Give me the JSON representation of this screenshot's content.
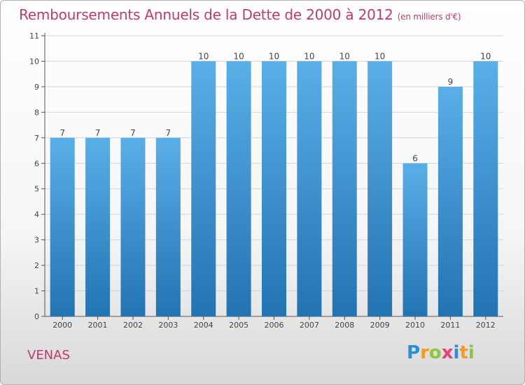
{
  "title": "Remboursements Annuels de la Dette de 2000 à 2012",
  "unit": "(en milliers d'€)",
  "commune": "VENAS",
  "logo": {
    "text": "Proxiti",
    "letters": [
      {
        "ch": "P",
        "color": "#2b8fd6"
      },
      {
        "ch": "r",
        "color": "#f39c1f"
      },
      {
        "ch": "o",
        "color": "#8cc63f"
      },
      {
        "ch": "x",
        "color": "#e5407a"
      },
      {
        "ch": "i",
        "color": "#2b8fd6"
      },
      {
        "ch": "t",
        "color": "#f39c1f"
      },
      {
        "ch": "i",
        "color": "#8cc63f"
      }
    ]
  },
  "colors": {
    "title": "#c03a6b",
    "bar_top": "#5aafe8",
    "bar_bottom": "#2273b2",
    "grid": "#d4d4d4",
    "label": "#444444"
  },
  "chart_data": {
    "type": "bar",
    "title": "Remboursements Annuels de la Dette de 2000 à 2012",
    "xlabel": "",
    "ylabel": "",
    "categories": [
      "2000",
      "2001",
      "2002",
      "2003",
      "2004",
      "2005",
      "2006",
      "2007",
      "2008",
      "2009",
      "2010",
      "2011",
      "2012"
    ],
    "values": [
      7,
      7,
      7,
      7,
      10,
      10,
      10,
      10,
      10,
      10,
      6,
      9,
      10
    ],
    "data_labels": [
      "7",
      "7",
      "7",
      "7",
      "10",
      "10",
      "10",
      "10",
      "10",
      "10",
      "6",
      "9",
      "10"
    ],
    "y_ticks": [
      0,
      1,
      2,
      3,
      4,
      5,
      6,
      7,
      8,
      9,
      10,
      11
    ],
    "ylim": [
      0,
      11
    ],
    "grid": true,
    "legend": "none"
  }
}
